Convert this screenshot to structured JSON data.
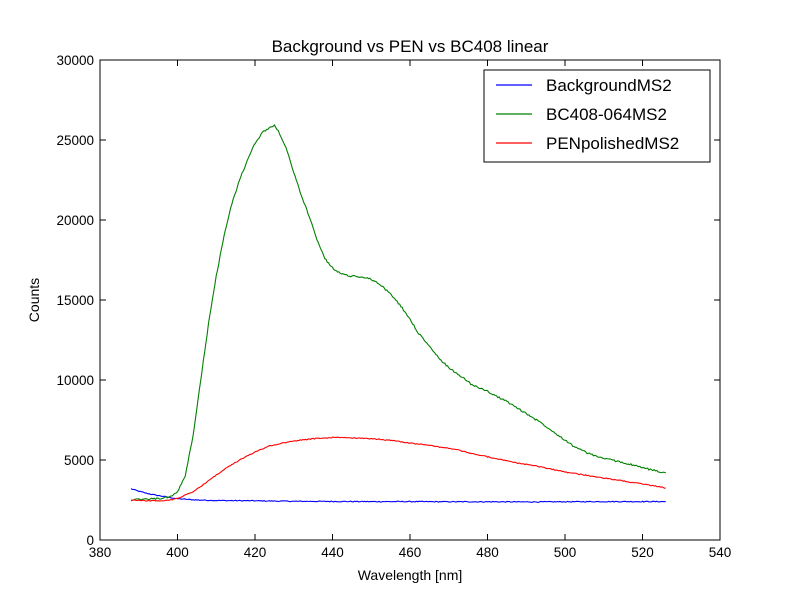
{
  "chart_data": {
    "type": "line",
    "title": "Background vs PEN vs BC408 linear",
    "xlabel": "Wavelength [nm]",
    "ylabel": "Counts",
    "xlim": [
      380,
      540
    ],
    "ylim": [
      0,
      30000
    ],
    "xticks": [
      380,
      400,
      420,
      440,
      460,
      480,
      500,
      520,
      540
    ],
    "yticks": [
      0,
      5000,
      10000,
      15000,
      20000,
      25000,
      30000
    ],
    "xtick_labels": [
      "380",
      "400",
      "420",
      "440",
      "460",
      "480",
      "500",
      "520",
      "540"
    ],
    "ytick_labels": [
      "0",
      "5000",
      "10000",
      "15000",
      "20000",
      "25000",
      "30000"
    ],
    "grid": false,
    "legend_position": "top-right",
    "series": [
      {
        "name": "BackgroundMS2",
        "color": "#0000ff",
        "points": [
          [
            388,
            3200
          ],
          [
            390,
            3050
          ],
          [
            392,
            2920
          ],
          [
            394,
            2820
          ],
          [
            396,
            2740
          ],
          [
            398,
            2660
          ],
          [
            400,
            2580
          ],
          [
            405,
            2500
          ],
          [
            410,
            2470
          ],
          [
            420,
            2450
          ],
          [
            430,
            2420
          ],
          [
            440,
            2410
          ],
          [
            450,
            2400
          ],
          [
            460,
            2400
          ],
          [
            470,
            2390
          ],
          [
            480,
            2390
          ],
          [
            490,
            2380
          ],
          [
            500,
            2390
          ],
          [
            510,
            2400
          ],
          [
            520,
            2400
          ],
          [
            526,
            2400
          ]
        ]
      },
      {
        "name": "BC408-064MS2",
        "color": "#008000",
        "points": [
          [
            388,
            2500
          ],
          [
            392,
            2550
          ],
          [
            396,
            2600
          ],
          [
            398,
            2700
          ],
          [
            400,
            3000
          ],
          [
            402,
            4000
          ],
          [
            404,
            6500
          ],
          [
            406,
            10000
          ],
          [
            408,
            13500
          ],
          [
            410,
            16500
          ],
          [
            412,
            19000
          ],
          [
            414,
            21000
          ],
          [
            416,
            22500
          ],
          [
            418,
            23700
          ],
          [
            420,
            24800
          ],
          [
            422,
            25500
          ],
          [
            424,
            25800
          ],
          [
            425,
            25900
          ],
          [
            426,
            25600
          ],
          [
            428,
            24500
          ],
          [
            430,
            23000
          ],
          [
            432,
            21500
          ],
          [
            434,
            20200
          ],
          [
            436,
            18800
          ],
          [
            438,
            17600
          ],
          [
            440,
            17000
          ],
          [
            442,
            16700
          ],
          [
            444,
            16500
          ],
          [
            446,
            16500
          ],
          [
            448,
            16400
          ],
          [
            450,
            16300
          ],
          [
            452,
            16000
          ],
          [
            454,
            15600
          ],
          [
            456,
            15100
          ],
          [
            458,
            14500
          ],
          [
            460,
            13800
          ],
          [
            462,
            13000
          ],
          [
            464,
            12400
          ],
          [
            466,
            11800
          ],
          [
            468,
            11200
          ],
          [
            470,
            10800
          ],
          [
            472,
            10400
          ],
          [
            474,
            10100
          ],
          [
            476,
            9700
          ],
          [
            478,
            9500
          ],
          [
            480,
            9300
          ],
          [
            482,
            9000
          ],
          [
            484,
            8800
          ],
          [
            486,
            8500
          ],
          [
            488,
            8200
          ],
          [
            490,
            7900
          ],
          [
            494,
            7300
          ],
          [
            498,
            6600
          ],
          [
            502,
            5900
          ],
          [
            506,
            5400
          ],
          [
            510,
            5100
          ],
          [
            514,
            4900
          ],
          [
            518,
            4650
          ],
          [
            522,
            4400
          ],
          [
            526,
            4200
          ]
        ]
      },
      {
        "name": "PENpolishedMS2",
        "color": "#ff0000",
        "points": [
          [
            388,
            2500
          ],
          [
            392,
            2450
          ],
          [
            396,
            2450
          ],
          [
            398,
            2500
          ],
          [
            400,
            2600
          ],
          [
            404,
            3000
          ],
          [
            408,
            3700
          ],
          [
            412,
            4400
          ],
          [
            416,
            5000
          ],
          [
            420,
            5500
          ],
          [
            424,
            5900
          ],
          [
            428,
            6100
          ],
          [
            432,
            6250
          ],
          [
            436,
            6350
          ],
          [
            440,
            6400
          ],
          [
            444,
            6400
          ],
          [
            448,
            6350
          ],
          [
            452,
            6300
          ],
          [
            456,
            6200
          ],
          [
            460,
            6050
          ],
          [
            464,
            5950
          ],
          [
            468,
            5800
          ],
          [
            472,
            5650
          ],
          [
            476,
            5400
          ],
          [
            480,
            5200
          ],
          [
            484,
            5000
          ],
          [
            488,
            4800
          ],
          [
            492,
            4650
          ],
          [
            496,
            4450
          ],
          [
            500,
            4250
          ],
          [
            504,
            4100
          ],
          [
            508,
            3950
          ],
          [
            512,
            3800
          ],
          [
            516,
            3650
          ],
          [
            520,
            3500
          ],
          [
            524,
            3350
          ],
          [
            526,
            3250
          ]
        ]
      }
    ]
  }
}
